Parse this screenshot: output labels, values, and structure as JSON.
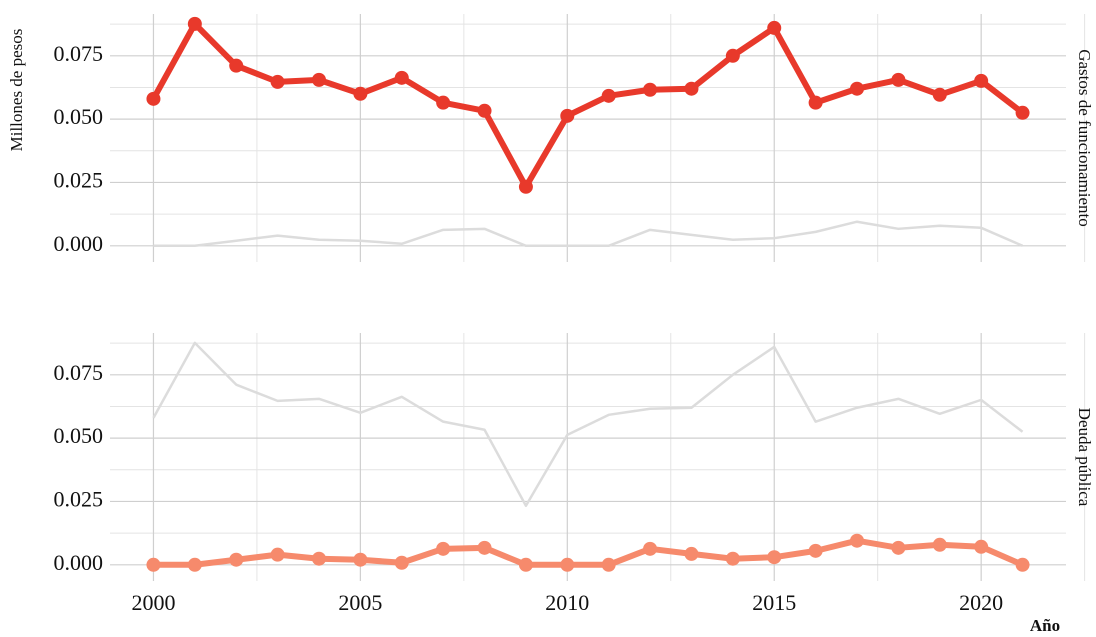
{
  "chart_data": {
    "type": "line",
    "x": [
      2000,
      2001,
      2002,
      2003,
      2004,
      2005,
      2006,
      2007,
      2008,
      2009,
      2010,
      2011,
      2012,
      2013,
      2014,
      2015,
      2016,
      2017,
      2018,
      2019,
      2020,
      2021
    ],
    "series": [
      {
        "name": "Gastos de funcionamiento",
        "color": "#e8392b",
        "values": [
          0.058,
          0.0876,
          0.0711,
          0.0647,
          0.0655,
          0.06,
          0.0663,
          0.0565,
          0.0533,
          0.0233,
          0.0513,
          0.0592,
          0.0616,
          0.062,
          0.075,
          0.086,
          0.0565,
          0.062,
          0.0655,
          0.0596,
          0.0651,
          0.0525
        ]
      },
      {
        "name": "Deuda pública",
        "color": "#f68a6c",
        "values": [
          0,
          0,
          0.002,
          0.004,
          0.0024,
          0.002,
          0.0008,
          0.0063,
          0.0067,
          0,
          0,
          0,
          0.0063,
          0.0043,
          0.0024,
          0.003,
          0.0055,
          0.0095,
          0.0067,
          0.0079,
          0.0071,
          0
        ]
      }
    ],
    "xlabel": "Año",
    "ylabel": "Millones de pesos",
    "xlim": [
      1998.95,
      2022.05
    ],
    "xticks": [
      2000,
      2005,
      2010,
      2015,
      2020
    ],
    "ylim": [
      -0.0064,
      0.0915
    ],
    "yticks": [
      {
        "value": 0,
        "label": "0.000"
      },
      {
        "value": 0.025,
        "label": "0.025"
      },
      {
        "value": 0.05,
        "label": "0.050"
      },
      {
        "value": 0.075,
        "label": "0.075"
      }
    ],
    "grid": true,
    "context_color": "#dcdcdc"
  }
}
